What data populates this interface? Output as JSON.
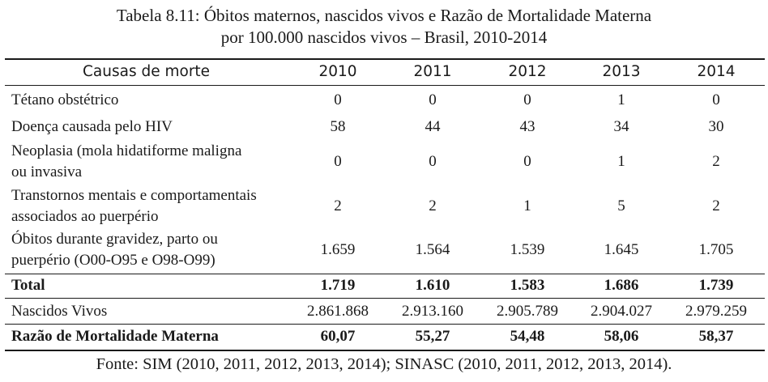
{
  "caption": {
    "line1": "Tabela 8.11: Óbitos maternos, nascidos vivos e Razão de Mortalidade Materna",
    "line2": "por 100.000 nascidos vivos – Brasil, 2010-2014"
  },
  "table": {
    "header": {
      "label": "Causas de morte",
      "years": [
        "2010",
        "2011",
        "2012",
        "2013",
        "2014"
      ]
    },
    "rows": [
      {
        "label": [
          "Tétano obstétrico"
        ],
        "values": [
          "0",
          "0",
          "0",
          "1",
          "0"
        ]
      },
      {
        "label": [
          "Doença causada pelo HIV"
        ],
        "values": [
          "58",
          "44",
          "43",
          "34",
          "30"
        ]
      },
      {
        "label": [
          "Neoplasia (mola hidatiforme maligna",
          "ou invasiva"
        ],
        "values": [
          "0",
          "0",
          "0",
          "1",
          "2"
        ]
      },
      {
        "label": [
          "Transtornos mentais e comportamentais",
          "associados ao puerpério"
        ],
        "values": [
          "2",
          "2",
          "1",
          "5",
          "2"
        ]
      },
      {
        "label": [
          "Óbitos durante gravidez, parto ou",
          "puerpério (O00-O95 e O98-O99)"
        ],
        "values": [
          "1.659",
          "1.564",
          "1.539",
          "1.645",
          "1.705"
        ]
      }
    ],
    "total": {
      "label": "Total",
      "values": [
        "1.719",
        "1.610",
        "1.583",
        "1.686",
        "1.739"
      ]
    },
    "births": {
      "label": "Nascidos Vivos",
      "values": [
        "2.861.868",
        "2.913.160",
        "2.905.789",
        "2.904.027",
        "2.979.259"
      ]
    },
    "ratio": {
      "label": "Razão de Mortalidade Materna",
      "values": [
        "60,07",
        "55,27",
        "54,48",
        "58,06",
        "58,37"
      ]
    }
  },
  "source": "Fonte: SIM (2010, 2011, 2012, 2013, 2014); SINASC (2010, 2011, 2012, 2013, 2014)."
}
